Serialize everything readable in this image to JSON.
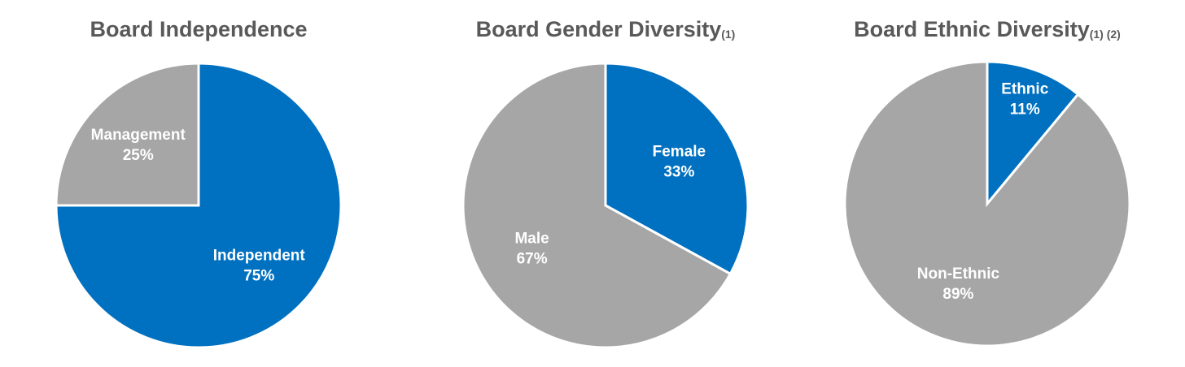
{
  "chart_data": [
    {
      "type": "pie",
      "title": "Board Independence",
      "categories": [
        "Independent",
        "Management"
      ],
      "values": [
        75,
        25
      ],
      "value_labels": [
        "75%",
        "25%"
      ],
      "colors": [
        "#0070c0",
        "#a6a6a6"
      ]
    },
    {
      "type": "pie",
      "title": "Board Gender Diversity",
      "title_note": "(1)",
      "categories": [
        "Female",
        "Male"
      ],
      "values": [
        33,
        67
      ],
      "value_labels": [
        "33%",
        "67%"
      ],
      "colors": [
        "#0070c0",
        "#a6a6a6"
      ]
    },
    {
      "type": "pie",
      "title": "Board Ethnic Diversity",
      "title_note": "(1) (2)",
      "categories": [
        "Ethnic",
        "Non-Ethnic"
      ],
      "values": [
        11,
        89
      ],
      "value_labels": [
        "11%",
        "89%"
      ],
      "colors": [
        "#0070c0",
        "#a6a6a6"
      ]
    }
  ]
}
